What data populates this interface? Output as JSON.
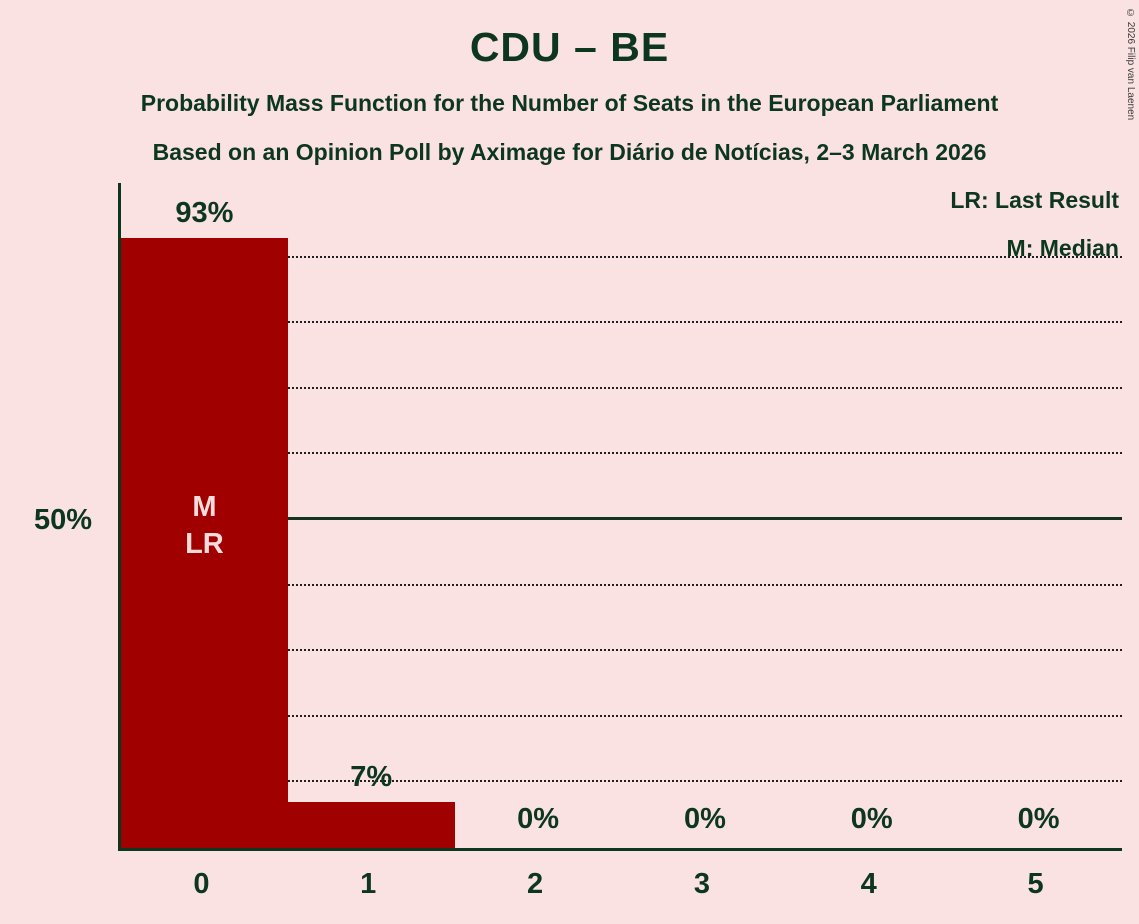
{
  "title": "CDU – BE",
  "subtitle1": "Probability Mass Function for the Number of Seats in the European Parliament",
  "subtitle2": "Based on an Opinion Poll by Aximage for Diário de Notícias, 2–3 March 2026",
  "legend": {
    "lr": "LR: Last Result",
    "m": "M: Median"
  },
  "y_axis_label": "50%",
  "copyright": "© 2026 Filip van Laenen",
  "colors": {
    "background": "#fbe2e2",
    "bar": "#a00000",
    "text": "#0c361e",
    "annotation_text": "#f7dcdc"
  },
  "chart_data": {
    "type": "bar",
    "title": "CDU – BE",
    "categories": [
      "0",
      "1",
      "2",
      "3",
      "4",
      "5"
    ],
    "values": [
      93,
      7,
      0,
      0,
      0,
      0
    ],
    "value_labels": [
      "93%",
      "7%",
      "0%",
      "0%",
      "0%",
      "0%"
    ],
    "bar_annotations": [
      [
        "M",
        "LR"
      ],
      [],
      [],
      [],
      [],
      []
    ],
    "xlabel": "",
    "ylabel": "",
    "ylim": [
      0,
      100
    ],
    "gridlines_pct": [
      10,
      20,
      30,
      40,
      50,
      60,
      70,
      80,
      90
    ],
    "solid_line_pct": 50,
    "grid_style": "dotted",
    "legend_position": "top-right",
    "median_seats": 0,
    "last_result_seats": 0
  }
}
